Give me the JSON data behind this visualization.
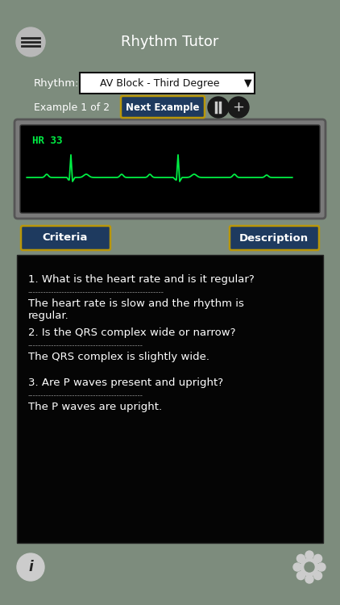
{
  "bg_color": "#7d8c7d",
  "title": "Rhythm Tutor",
  "title_color": "#ffffff",
  "title_fontsize": 13,
  "rhythm_label": "Rhythm:",
  "rhythm_value": "AV Block - Third Degree",
  "example_text": "Example 1 of 2",
  "next_btn_text": "Next Example",
  "ecg_bg": "#000000",
  "ecg_color": "#00ee44",
  "hr_text": "HR 33",
  "criteria_btn": "Criteria",
  "description_btn": "Description",
  "btn_bg": "#1e3a5f",
  "btn_border": "#b8960a",
  "content_bg": "#050505",
  "content_text_color": "#ffffff",
  "q1": "1. What is the heart rate and is it regular?",
  "a1": "The heart rate is slow and the rhythm is\nregular.",
  "q2": "2. Is the QRS complex wide or narrow?",
  "a2": "The QRS complex is slightly wide.",
  "q3": "3. Are P waves present and upright?",
  "a3": "The P waves are upright.",
  "figw": 4.22,
  "figh": 7.5,
  "dpi": 100
}
